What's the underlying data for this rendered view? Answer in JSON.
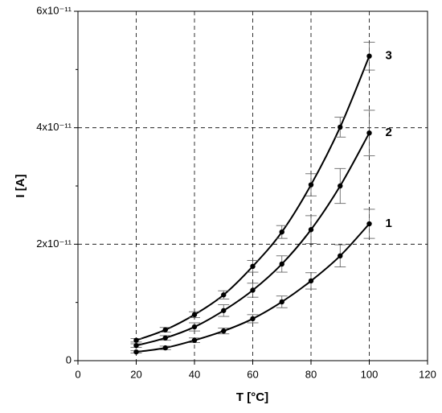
{
  "chart_data": {
    "type": "scatter",
    "xlabel": "T [°C]",
    "ylabel": "I [A]",
    "x": [
      20,
      30,
      40,
      50,
      60,
      70,
      80,
      90,
      100
    ],
    "series": [
      {
        "name": "1",
        "color": "#000000",
        "values": [
          1.5e-12,
          2.2e-12,
          3.5e-12,
          5.1e-12,
          7.2e-12,
          1.01e-11,
          1.37e-11,
          1.8e-11,
          2.35e-11
        ],
        "errors": [
          2e-13,
          3e-13,
          4e-13,
          5e-13,
          7e-13,
          1e-12,
          1.4e-12,
          1.9e-12,
          2.5e-12
        ]
      },
      {
        "name": "2",
        "color": "#000000",
        "values": [
          2.6e-12,
          3.9e-12,
          5.8e-12,
          8.6e-12,
          1.21e-11,
          1.66e-11,
          2.25e-11,
          3e-11,
          3.91e-11
        ],
        "errors": [
          3e-13,
          4e-13,
          7e-13,
          1e-12,
          1.2e-12,
          1.4e-12,
          2.4e-12,
          3e-12,
          3.9e-12
        ]
      },
      {
        "name": "3",
        "color": "#000000",
        "values": [
          3.5e-12,
          5.3e-12,
          7.9e-12,
          1.13e-11,
          1.62e-11,
          2.21e-11,
          3.02e-11,
          4.01e-11,
          5.23e-11
        ],
        "errors": [
          3e-13,
          4e-13,
          5e-13,
          7e-13,
          1e-12,
          1.1e-12,
          1.9e-12,
          1.7e-12,
          2.4e-12
        ]
      }
    ],
    "xlim": [
      0,
      120
    ],
    "xticks": [
      0,
      20,
      40,
      60,
      80,
      100,
      120
    ],
    "ylim": [
      0,
      6e-11
    ],
    "yticks": [
      0,
      {
        "value": 2e-11,
        "label": "2x10⁻¹¹"
      },
      {
        "value": 4e-11,
        "label": "4x10⁻¹¹"
      },
      {
        "value": 6e-11,
        "label": "6x10⁻¹¹"
      }
    ],
    "yminorticks": [
      1e-11,
      3e-11,
      5e-11
    ],
    "grid": true
  }
}
